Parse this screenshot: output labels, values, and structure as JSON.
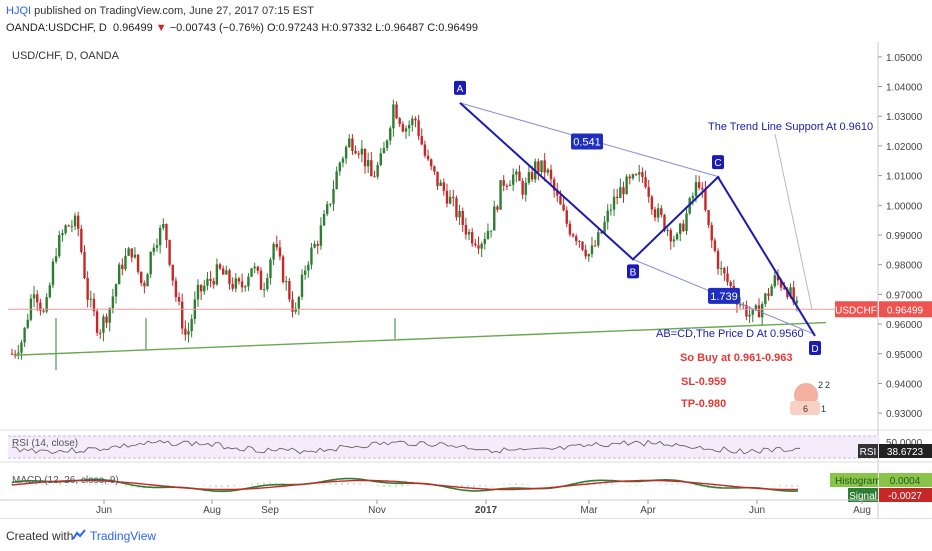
{
  "header": {
    "line1_user": "HJQI",
    "line1_text": "published on TradingView.com, June 27, 2017 07:15 EST",
    "line2_symbol": "OANDA:USDCHF, D",
    "line2_last": "0.96499",
    "line2_change": "−0.00743 (−0.76%)",
    "line2_ohlc": "O:0.97243 H:0.97332 L:0.96487 C:0.96499"
  },
  "chart_title": "USD/CHF, D, OANDA",
  "footer": {
    "created_with": "Created with",
    "brand": "TradingView"
  },
  "colors": {
    "bull": "#26a69a",
    "bear": "#ef5350",
    "pattern": "#1a1ab5",
    "trend": "#6aa84f",
    "channel": "#8a8ad6",
    "annotation": "#e53935",
    "macd": "#2e7d32",
    "signal": "#c62828"
  },
  "chart_data": {
    "type": "candlestick",
    "ylim": [
      0.925,
      1.055
    ],
    "y_ticks": [
      "1.05000",
      "1.04000",
      "1.03000",
      "1.02000",
      "1.01000",
      "1.00000",
      "0.99000",
      "0.98000",
      "0.97000",
      "0.96000",
      "0.95000",
      "0.94000",
      "0.93000"
    ],
    "y_tick_values": [
      1.05,
      1.04,
      1.03,
      1.02,
      1.01,
      1.0,
      0.99,
      0.98,
      0.97,
      0.96,
      0.95,
      0.94,
      0.93
    ],
    "x_ticks": [
      "Jun",
      "Aug",
      "Sep",
      "Nov",
      "2017",
      "Mar",
      "Apr",
      "Jun",
      "Aug"
    ],
    "price_path": [
      0.95,
      0.955,
      0.973,
      0.962,
      0.985,
      0.993,
      0.994,
      0.968,
      0.958,
      0.966,
      0.98,
      0.985,
      0.972,
      0.988,
      0.993,
      0.97,
      0.955,
      0.97,
      0.974,
      0.978,
      0.974,
      0.972,
      0.98,
      0.972,
      0.987,
      0.975,
      0.963,
      0.981,
      0.988,
      0.999,
      1.014,
      1.022,
      1.019,
      1.009,
      1.016,
      1.034,
      1.026,
      1.029,
      1.015,
      1.008,
      1.003,
      0.996,
      0.99,
      0.988,
      0.994,
      1.008,
      1.01,
      1.005,
      1.013,
      1.012,
      1.002,
      0.993,
      0.989,
      0.983,
      0.99,
      1.0,
      1.006,
      1.008,
      1.01,
      0.998,
      0.993,
      0.988,
      0.998,
      1.009,
      0.99,
      0.978,
      0.972,
      0.966,
      0.962,
      0.968,
      0.975,
      0.973,
      0.965
    ],
    "last_price_label": "USDCHF",
    "last_price": "0.96499",
    "points": [
      {
        "label": "A",
        "price": 1.0345
      },
      {
        "label": "B",
        "price": 0.9818
      },
      {
        "label": "C",
        "price": 1.0095
      },
      {
        "label": "D",
        "price": 0.956
      }
    ],
    "ratios": [
      "0.541",
      "1.739"
    ],
    "annotations": {
      "trend_support": "The Trend Line Support At 0.9610",
      "abcd": "AB=CD,The Price D At 0.9560",
      "buy": "So Buy at 0.961-0.963",
      "sl": "SL-0.959",
      "tp": "TP-0.980"
    },
    "rsi": {
      "label": "RSI (14, close)",
      "badge": "RSI",
      "value": "38.6723",
      "top_tick": "50.0000"
    },
    "macd": {
      "label": "MACD (12, 26, close, 9)",
      "hist_badge": "Histogram",
      "hist_value": "0.0004",
      "signal_badge": "Signal",
      "signal_value": "-0.0027"
    },
    "stamp_digits": [
      "2",
      "2",
      "6",
      "1"
    ]
  }
}
